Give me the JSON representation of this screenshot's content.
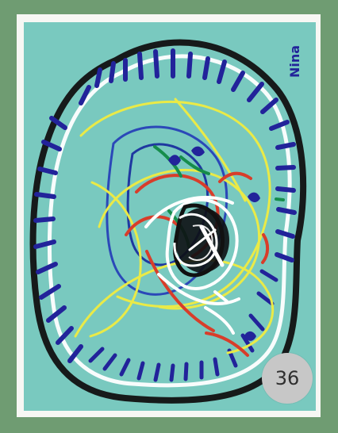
{
  "artwork": {
    "page_number": "36",
    "signature": "Nina"
  },
  "colors": {
    "outer_frame": "#6f9c72",
    "mat": "#f7f7f4",
    "canvas": "#79c9bf",
    "badge": "#c7c7c7",
    "paint_blue": "#22239a",
    "paint_black": "#111111",
    "paint_white": "#ffffff",
    "paint_yellow": "#eaea47",
    "paint_red": "#d83d2a",
    "paint_green": "#168d4b"
  }
}
